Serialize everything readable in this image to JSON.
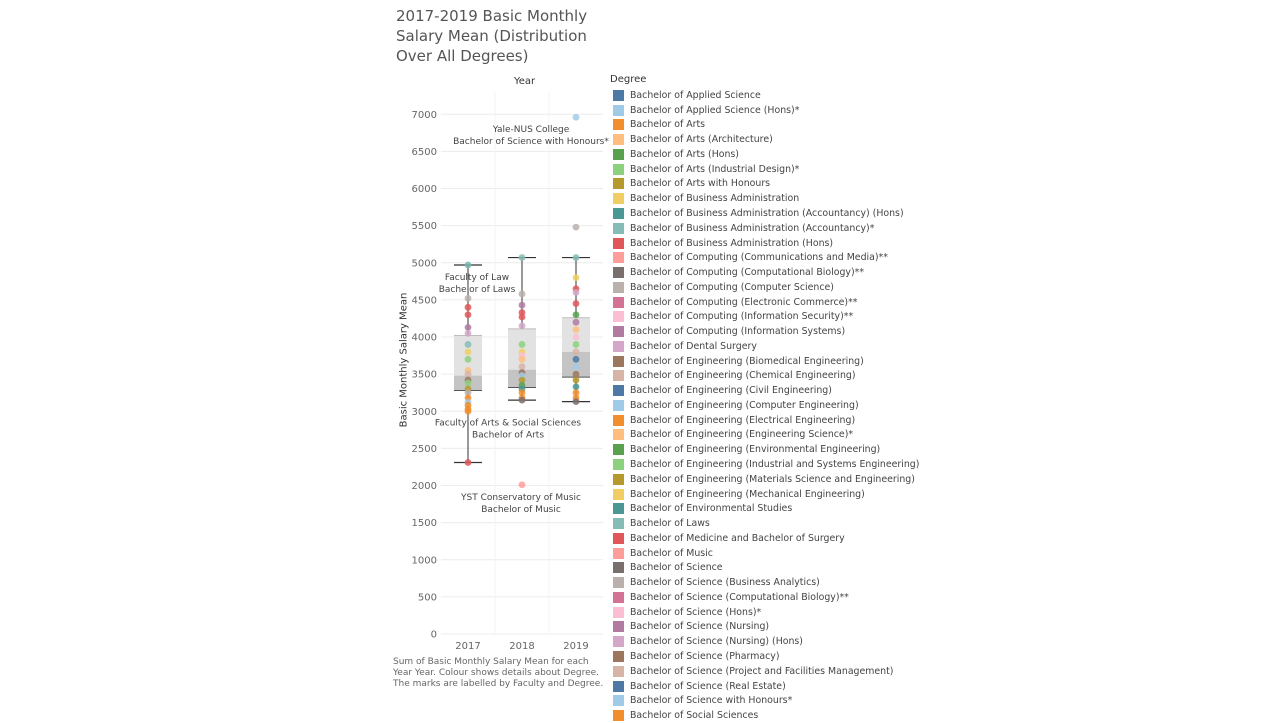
{
  "title": "2017-2019 Basic Monthly Salary Mean (Distribution Over All Degrees)",
  "caption": "Sum of Basic Monthly Salary Mean for each Year Year.  Colour shows details about Degree.  The marks are labelled by Faculty and Degree.",
  "chart_data": {
    "type": "scatter",
    "title": "2017-2019 Basic Monthly Salary Mean (Distribution Over All Degrees)",
    "column_header": "Year",
    "xlabel": "",
    "ylabel": "Basic Monthly Salary Mean",
    "categories": [
      "2017",
      "2018",
      "2019"
    ],
    "ylim": [
      0,
      7300
    ],
    "yticks": [
      0,
      500,
      1000,
      1500,
      2000,
      2500,
      3000,
      3500,
      4000,
      4500,
      5000,
      5500,
      6000,
      6500,
      7000
    ],
    "grid": true,
    "legend_title": "Degree",
    "legend_position": "right",
    "boxplots": [
      {
        "x": "2017",
        "min": 2310,
        "q1": 3280,
        "median": 3480,
        "q3": 4020,
        "max": 4970
      },
      {
        "x": "2018",
        "min": 3150,
        "q1": 3320,
        "median": 3560,
        "q3": 4110,
        "max": 5070
      },
      {
        "x": "2019",
        "min": 3130,
        "q1": 3460,
        "median": 3800,
        "q3": 4260,
        "max": 5070
      }
    ],
    "points": [
      {
        "x": "2017",
        "y": 4970,
        "color": "#76b7b2"
      },
      {
        "x": "2017",
        "y": 4520,
        "color": "#bab0ac"
      },
      {
        "x": "2017",
        "y": 4400,
        "color": "#e15759"
      },
      {
        "x": "2017",
        "y": 4300,
        "color": "#e15759"
      },
      {
        "x": "2017",
        "y": 4130,
        "color": "#b07aa1"
      },
      {
        "x": "2017",
        "y": 4050,
        "color": "#d4a6c8"
      },
      {
        "x": "2017",
        "y": 3900,
        "color": "#86bcb6"
      },
      {
        "x": "2017",
        "y": 3800,
        "color": "#f1ce63"
      },
      {
        "x": "2017",
        "y": 3700,
        "color": "#8cd17d"
      },
      {
        "x": "2017",
        "y": 3550,
        "color": "#ffbe7d"
      },
      {
        "x": "2017",
        "y": 3500,
        "color": "#d7b5a6"
      },
      {
        "x": "2017",
        "y": 3420,
        "color": "#9d7660"
      },
      {
        "x": "2017",
        "y": 3380,
        "color": "#8cd17d"
      },
      {
        "x": "2017",
        "y": 3300,
        "color": "#b6992d"
      },
      {
        "x": "2017",
        "y": 3250,
        "color": "#bab0ac"
      },
      {
        "x": "2017",
        "y": 3180,
        "color": "#f28e2b"
      },
      {
        "x": "2017",
        "y": 3120,
        "color": "#a0cbe8"
      },
      {
        "x": "2017",
        "y": 3080,
        "color": "#f28e2b"
      },
      {
        "x": "2017",
        "y": 3030,
        "color": "#f28e2b"
      },
      {
        "x": "2017",
        "y": 3000,
        "color": "#f28e2b"
      },
      {
        "x": "2017",
        "y": 2310,
        "color": "#e15759"
      },
      {
        "x": "2018",
        "y": 5070,
        "color": "#86bcb6"
      },
      {
        "x": "2018",
        "y": 4580,
        "color": "#bab0ac"
      },
      {
        "x": "2018",
        "y": 4430,
        "color": "#b07aa1"
      },
      {
        "x": "2018",
        "y": 4330,
        "color": "#e15759"
      },
      {
        "x": "2018",
        "y": 4270,
        "color": "#e15759"
      },
      {
        "x": "2018",
        "y": 4150,
        "color": "#d4a6c8"
      },
      {
        "x": "2018",
        "y": 3900,
        "color": "#8cd17d"
      },
      {
        "x": "2018",
        "y": 3800,
        "color": "#f1ce63"
      },
      {
        "x": "2018",
        "y": 3750,
        "color": "#fabfd2"
      },
      {
        "x": "2018",
        "y": 3700,
        "color": "#ffbe7d"
      },
      {
        "x": "2018",
        "y": 3600,
        "color": "#d7b5a6"
      },
      {
        "x": "2018",
        "y": 3520,
        "color": "#9d7660"
      },
      {
        "x": "2018",
        "y": 3480,
        "color": "#a0cbe8"
      },
      {
        "x": "2018",
        "y": 3420,
        "color": "#b6992d"
      },
      {
        "x": "2018",
        "y": 3350,
        "color": "#59a14f"
      },
      {
        "x": "2018",
        "y": 3300,
        "color": "#499894"
      },
      {
        "x": "2018",
        "y": 3250,
        "color": "#f28e2b"
      },
      {
        "x": "2018",
        "y": 3180,
        "color": "#f28e2b"
      },
      {
        "x": "2018",
        "y": 3150,
        "color": "#79706e"
      },
      {
        "x": "2018",
        "y": 2010,
        "color": "#ff9d9a"
      },
      {
        "x": "2019",
        "y": 6960,
        "color": "#a0cbe8"
      },
      {
        "x": "2019",
        "y": 5480,
        "color": "#bab0ac"
      },
      {
        "x": "2019",
        "y": 5070,
        "color": "#86bcb6"
      },
      {
        "x": "2019",
        "y": 4800,
        "color": "#f1ce63"
      },
      {
        "x": "2019",
        "y": 4650,
        "color": "#e15759"
      },
      {
        "x": "2019",
        "y": 4600,
        "color": "#d4a6c8"
      },
      {
        "x": "2019",
        "y": 4450,
        "color": "#e15759"
      },
      {
        "x": "2019",
        "y": 4300,
        "color": "#59a14f"
      },
      {
        "x": "2019",
        "y": 4200,
        "color": "#b07aa1"
      },
      {
        "x": "2019",
        "y": 4100,
        "color": "#ffbe7d"
      },
      {
        "x": "2019",
        "y": 4000,
        "color": "#fabfd2"
      },
      {
        "x": "2019",
        "y": 3900,
        "color": "#8cd17d"
      },
      {
        "x": "2019",
        "y": 3800,
        "color": "#d7b5a6"
      },
      {
        "x": "2019",
        "y": 3700,
        "color": "#4e79a7"
      },
      {
        "x": "2019",
        "y": 3600,
        "color": "#a0cbe8"
      },
      {
        "x": "2019",
        "y": 3500,
        "color": "#9d7660"
      },
      {
        "x": "2019",
        "y": 3420,
        "color": "#b6992d"
      },
      {
        "x": "2019",
        "y": 3330,
        "color": "#499894"
      },
      {
        "x": "2019",
        "y": 3250,
        "color": "#f28e2b"
      },
      {
        "x": "2019",
        "y": 3180,
        "color": "#f28e2b"
      },
      {
        "x": "2019",
        "y": 3130,
        "color": "#79706e"
      }
    ],
    "annotations": [
      {
        "x": "2019",
        "y": 6960,
        "lines": [
          "Yale-NUS College",
          "Bachelor of Science with Honours*"
        ]
      },
      {
        "x": "2017",
        "y": 4970,
        "lines": [
          "Faculty of Law",
          "Bachelor of Laws"
        ]
      },
      {
        "x": "2017",
        "y": 3000,
        "lines": [
          "Faculty of Arts & Social Sciences",
          "Bachelor of Arts"
        ]
      },
      {
        "x": "2018",
        "y": 2010,
        "lines": [
          "YST Conservatory of Music",
          "Bachelor of Music"
        ]
      }
    ],
    "legend": [
      {
        "label": "Bachelor of Applied Science",
        "color": "#4e79a7"
      },
      {
        "label": "Bachelor of Applied Science (Hons)*",
        "color": "#a0cbe8"
      },
      {
        "label": "Bachelor of Arts",
        "color": "#f28e2b"
      },
      {
        "label": "Bachelor of Arts (Architecture)",
        "color": "#ffbe7d"
      },
      {
        "label": "Bachelor of Arts (Hons)",
        "color": "#59a14f"
      },
      {
        "label": "Bachelor of Arts (Industrial Design)*",
        "color": "#8cd17d"
      },
      {
        "label": "Bachelor of Arts with Honours",
        "color": "#b6992d"
      },
      {
        "label": "Bachelor of Business Administration",
        "color": "#f1ce63"
      },
      {
        "label": "Bachelor of Business Administration (Accountancy) (Hons)",
        "color": "#499894"
      },
      {
        "label": "Bachelor of Business Administration (Accountancy)*",
        "color": "#86bcb6"
      },
      {
        "label": "Bachelor of Business Administration (Hons)",
        "color": "#e15759"
      },
      {
        "label": "Bachelor of Computing (Communications and Media)**",
        "color": "#ff9d9a"
      },
      {
        "label": "Bachelor of Computing (Computational Biology)**",
        "color": "#79706e"
      },
      {
        "label": "Bachelor of Computing (Computer Science)",
        "color": "#bab0ac"
      },
      {
        "label": "Bachelor of Computing (Electronic Commerce)**",
        "color": "#d37295"
      },
      {
        "label": "Bachelor of Computing (Information Security)**",
        "color": "#fabfd2"
      },
      {
        "label": "Bachelor of Computing (Information Systems)",
        "color": "#b07aa1"
      },
      {
        "label": "Bachelor of Dental Surgery",
        "color": "#d4a6c8"
      },
      {
        "label": "Bachelor of Engineering (Biomedical Engineering)",
        "color": "#9d7660"
      },
      {
        "label": "Bachelor of Engineering (Chemical Engineering)",
        "color": "#d7b5a6"
      },
      {
        "label": "Bachelor of Engineering (Civil Engineering)",
        "color": "#4e79a7"
      },
      {
        "label": "Bachelor of Engineering (Computer Engineering)",
        "color": "#a0cbe8"
      },
      {
        "label": "Bachelor of Engineering (Electrical Engineering)",
        "color": "#f28e2b"
      },
      {
        "label": "Bachelor of Engineering (Engineering Science)*",
        "color": "#ffbe7d"
      },
      {
        "label": "Bachelor of Engineering (Environmental Engineering)",
        "color": "#59a14f"
      },
      {
        "label": "Bachelor of Engineering (Industrial and Systems Engineering)",
        "color": "#8cd17d"
      },
      {
        "label": "Bachelor of Engineering (Materials Science and Engineering)",
        "color": "#b6992d"
      },
      {
        "label": "Bachelor of Engineering (Mechanical Engineering)",
        "color": "#f1ce63"
      },
      {
        "label": "Bachelor of Environmental Studies",
        "color": "#499894"
      },
      {
        "label": "Bachelor of Laws",
        "color": "#86bcb6"
      },
      {
        "label": "Bachelor of Medicine and Bachelor of Surgery",
        "color": "#e15759"
      },
      {
        "label": "Bachelor of Music",
        "color": "#ff9d9a"
      },
      {
        "label": "Bachelor of Science",
        "color": "#79706e"
      },
      {
        "label": "Bachelor of Science (Business Analytics)",
        "color": "#bab0ac"
      },
      {
        "label": "Bachelor of Science (Computational Biology)**",
        "color": "#d37295"
      },
      {
        "label": "Bachelor of Science (Hons)*",
        "color": "#fabfd2"
      },
      {
        "label": "Bachelor of Science (Nursing)",
        "color": "#b07aa1"
      },
      {
        "label": "Bachelor of Science (Nursing) (Hons)",
        "color": "#d4a6c8"
      },
      {
        "label": "Bachelor of Science (Pharmacy)",
        "color": "#9d7660"
      },
      {
        "label": "Bachelor of Science (Project and Facilities Management)",
        "color": "#d7b5a6"
      },
      {
        "label": "Bachelor of Science (Real Estate)",
        "color": "#4e79a7"
      },
      {
        "label": "Bachelor of Science with Honours*",
        "color": "#a0cbe8"
      },
      {
        "label": "Bachelor of Social Sciences",
        "color": "#f28e2b"
      }
    ]
  }
}
